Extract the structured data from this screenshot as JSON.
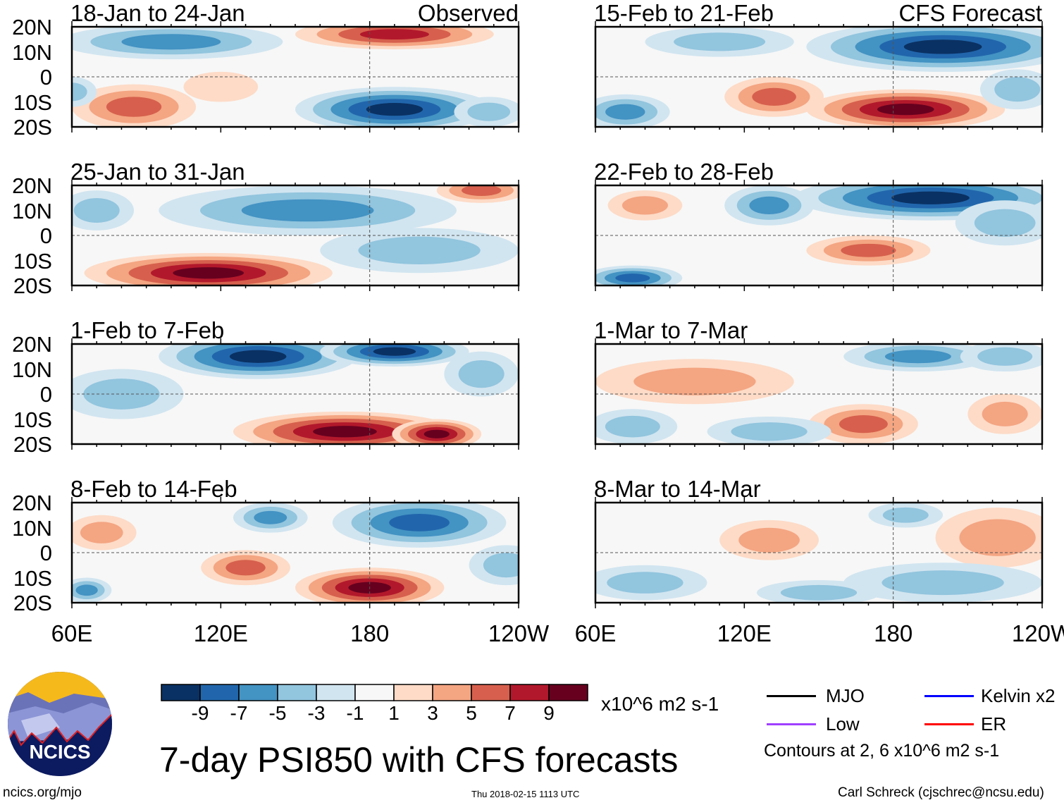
{
  "chart_data": {
    "type": "heatmap",
    "title": "7-day PSI850 with CFS forecasts",
    "units": "x10^6 m2 s-1",
    "lon_ticks": [
      "60E",
      "120E",
      "180",
      "120W"
    ],
    "lat_ticks": [
      "20N",
      "10N",
      "0",
      "10S",
      "20S"
    ],
    "lon_range": [
      60,
      240
    ],
    "lat_range": [
      -20,
      20
    ],
    "colorbar": {
      "levels": [
        "-9",
        "-7",
        "-5",
        "-3",
        "-1",
        "1",
        "3",
        "5",
        "7",
        "9"
      ],
      "colors": [
        "#0a3163",
        "#2166ac",
        "#4393c3",
        "#92c5de",
        "#d1e5f0",
        "#f7f7f7",
        "#fddbc7",
        "#f4a582",
        "#d6604d",
        "#b2182b",
        "#67001f"
      ]
    },
    "column_labels": {
      "left": "Observed",
      "right": "CFS Forecast"
    },
    "panels": [
      {
        "period": "18-Jan to 24-Jan",
        "blobs": [
          [
            100,
            14,
            45,
            7,
            -5
          ],
          [
            190,
            -13,
            40,
            9,
            -9
          ],
          [
            190,
            17,
            40,
            6,
            7
          ],
          [
            85,
            -12,
            25,
            9,
            6
          ],
          [
            120,
            -4,
            15,
            6,
            2
          ],
          [
            228,
            -14,
            14,
            6,
            -3
          ],
          [
            60,
            -6,
            10,
            6,
            -3
          ]
        ]
      },
      {
        "period": "25-Jan to 31-Jan",
        "blobs": [
          [
            155,
            10,
            60,
            10,
            -5
          ],
          [
            115,
            -15,
            50,
            8,
            9
          ],
          [
            225,
            18,
            18,
            5,
            5
          ],
          [
            200,
            -6,
            40,
            9,
            -3
          ],
          [
            70,
            10,
            15,
            8,
            -3
          ]
        ]
      },
      {
        "period": "1-Feb to 7-Feb",
        "blobs": [
          [
            135,
            15,
            40,
            9,
            -9
          ],
          [
            190,
            17,
            30,
            6,
            -9
          ],
          [
            170,
            -15,
            45,
            8,
            9
          ],
          [
            207,
            -16,
            18,
            6,
            9
          ],
          [
            80,
            0,
            25,
            10,
            -3
          ],
          [
            225,
            8,
            15,
            9,
            -3
          ]
        ]
      },
      {
        "period": "8-Feb to 14-Feb",
        "blobs": [
          [
            200,
            12,
            35,
            10,
            -7
          ],
          [
            140,
            14,
            15,
            6,
            -5
          ],
          [
            180,
            -14,
            30,
            8,
            10
          ],
          [
            130,
            -6,
            18,
            7,
            5
          ],
          [
            72,
            8,
            14,
            7,
            3
          ],
          [
            66,
            -15,
            10,
            5,
            -5
          ],
          [
            235,
            -5,
            15,
            8,
            -3
          ]
        ]
      },
      {
        "period": "15-Feb to 21-Feb",
        "blobs": [
          [
            200,
            12,
            55,
            10,
            -9
          ],
          [
            72,
            -14,
            18,
            7,
            -5
          ],
          [
            185,
            -13,
            40,
            8,
            9
          ],
          [
            132,
            -8,
            20,
            8,
            5
          ],
          [
            110,
            14,
            30,
            6,
            -3
          ],
          [
            230,
            -5,
            15,
            8,
            -3
          ]
        ]
      },
      {
        "period": "22-Feb to 28-Feb",
        "blobs": [
          [
            195,
            15,
            55,
            9,
            -9
          ],
          [
            130,
            12,
            18,
            8,
            -5
          ],
          [
            75,
            -17,
            20,
            5,
            -7
          ],
          [
            170,
            -6,
            25,
            6,
            5
          ],
          [
            80,
            12,
            15,
            6,
            3
          ],
          [
            225,
            5,
            20,
            9,
            -3
          ]
        ]
      },
      {
        "period": "1-Mar to 7-Mar",
        "blobs": [
          [
            100,
            5,
            40,
            9,
            3
          ],
          [
            190,
            15,
            30,
            6,
            -5
          ],
          [
            168,
            -12,
            22,
            8,
            5
          ],
          [
            225,
            -8,
            15,
            8,
            3
          ],
          [
            130,
            -15,
            25,
            6,
            -3
          ],
          [
            75,
            -13,
            18,
            7,
            -3
          ],
          [
            225,
            15,
            18,
            6,
            -3
          ]
        ]
      },
      {
        "period": "8-Mar to 14-Mar",
        "blobs": [
          [
            130,
            5,
            20,
            8,
            3
          ],
          [
            222,
            6,
            25,
            12,
            3
          ],
          [
            200,
            -12,
            40,
            8,
            -3
          ],
          [
            80,
            -12,
            25,
            7,
            -3
          ],
          [
            185,
            15,
            15,
            5,
            -3
          ],
          [
            150,
            -16,
            25,
            5,
            -3
          ]
        ]
      }
    ]
  },
  "legend": {
    "mjo": "MJO",
    "kelvin": "Kelvin x2",
    "low": "Low",
    "er": "ER",
    "colors": {
      "mjo": "#000000",
      "kelvin": "#0000ff",
      "low": "#a040ff",
      "er": "#ff0000"
    },
    "contours_note": "Contours at 2, 6 x10^6 m2 s-1"
  },
  "logo_text": "NCICS",
  "footer": {
    "url": "ncics.org/mjo",
    "timestamp": "Thu 2018-02-15 1113 UTC",
    "author": "Carl Schreck (cjschrec@ncsu.edu)"
  }
}
